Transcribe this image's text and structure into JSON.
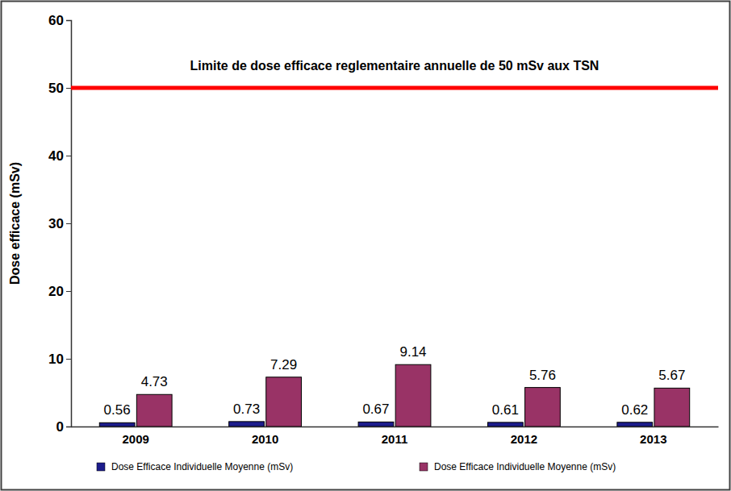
{
  "chart_data": {
    "type": "bar",
    "categories": [
      "2009",
      "2010",
      "2011",
      "2012",
      "2013"
    ],
    "series": [
      {
        "name": "Dose Efficace Individuelle Moyenne (mSv)",
        "color": "#1c1c8c",
        "values": [
          0.56,
          0.73,
          0.67,
          0.61,
          0.62
        ]
      },
      {
        "name": "Dose Efficace Individuelle Moyenne (mSv)",
        "color": "#993366",
        "values": [
          4.73,
          7.29,
          9.14,
          5.76,
          5.67
        ]
      }
    ],
    "y_label": "Dose efficace (mSv)",
    "ylim": [
      0,
      60
    ],
    "yticks": [
      0,
      10,
      20,
      30,
      40,
      50,
      60
    ],
    "grid": false,
    "legend": "bottom",
    "data_labels": true,
    "reference_lines": [
      {
        "value": 50,
        "label": "Limite de dose efficace reglementaire annuelle de 50 mSv aux TSN",
        "color": "#ff0000"
      }
    ]
  }
}
